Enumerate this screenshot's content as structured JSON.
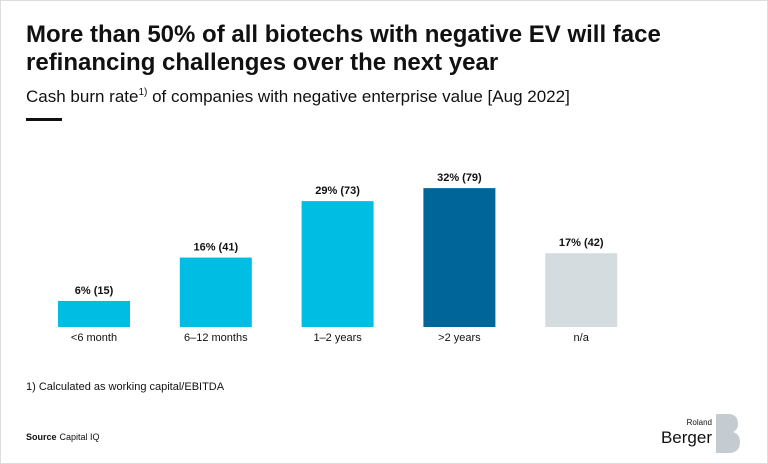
{
  "chart_data": {
    "type": "bar",
    "title": [
      "More than 50% of all biotechs with negative EV will face",
      "refinancing challenges over the next year"
    ],
    "subtitle": {
      "before": "Cash burn rate",
      "marker": "1)",
      "after": " of companies with negative enterprise value [Aug 2022]"
    },
    "categories": [
      "<6 month",
      "6–12 months",
      "1–2 years",
      ">2 years",
      "n/a"
    ],
    "values": [
      6,
      16,
      29,
      32,
      17
    ],
    "value_labels": [
      "6% (15)",
      "16% (41)",
      "29% (73)",
      "32% (79)",
      "17% (42)"
    ],
    "colors": [
      "#00bde3",
      "#00bde3",
      "#00bde3",
      "#006699",
      "#d5dcdf"
    ],
    "footnote": "1) Calculated as working capital/EBITDA",
    "source": {
      "label": "Source",
      "text": "Capital IQ"
    },
    "logo": {
      "small": "Roland",
      "large": "Berger"
    }
  }
}
